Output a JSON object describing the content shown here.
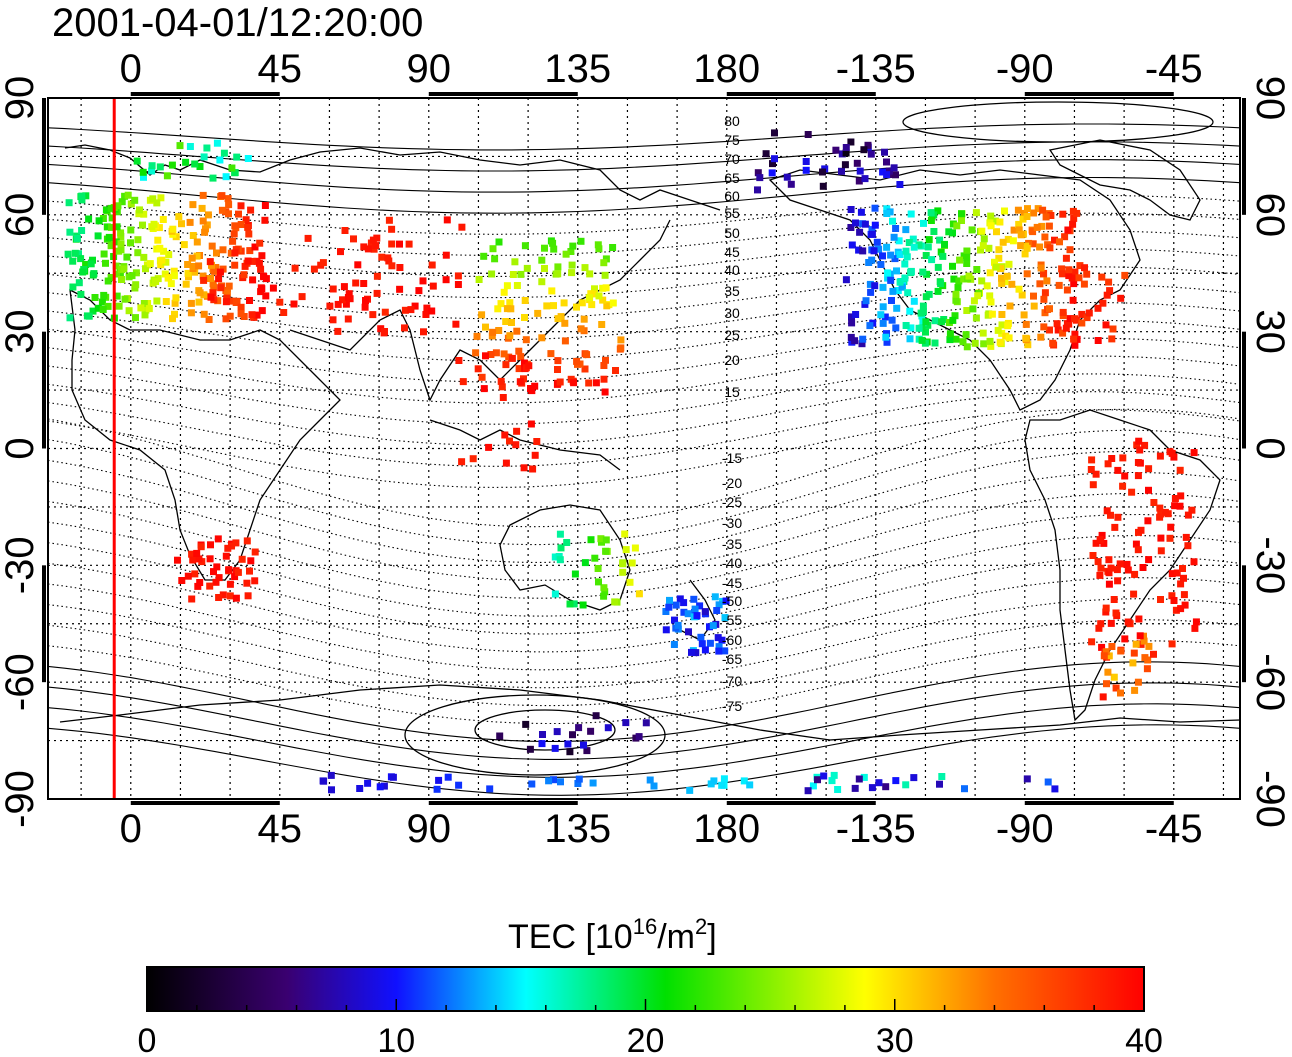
{
  "timestamp": "2001-04-01/12:20:00",
  "axes": {
    "x_ticks": [
      "0",
      "45",
      "90",
      "135",
      "180",
      "-135",
      "-90",
      "-45"
    ],
    "y_ticks": [
      "90",
      "60",
      "30",
      "0",
      "-30",
      "-60",
      "-90"
    ]
  },
  "magnetic_contour_labels": [
    "80",
    "75",
    "70",
    "65",
    "60",
    "55",
    "50",
    "45",
    "40",
    "35",
    "30",
    "25",
    "20",
    "15",
    "-15",
    "-20",
    "-25",
    "-30",
    "-35",
    "-40",
    "-45",
    "-50",
    "-55",
    "-60",
    "-65",
    "-70",
    "-75"
  ],
  "colorbar": {
    "title_main": "TEC  [10",
    "title_exp": "16",
    "title_mid": "/m",
    "title_exp2": "2",
    "title_end": "]",
    "tick_labels": [
      "0",
      "10",
      "20",
      "30",
      "40"
    ],
    "min": 0,
    "max": 40,
    "colormap_stops": [
      "#000000",
      "#3a0070",
      "#1010ff",
      "#00ffff",
      "#00e000",
      "#ffff00",
      "#ff7000",
      "#ff0000"
    ]
  },
  "terminator_color": "#ff0000",
  "map_data": {
    "projection": "equirectangular",
    "longitude_range": [
      -25,
      335
    ],
    "latitude_range": [
      -90,
      90
    ],
    "terminator_longitude": -5
  }
}
